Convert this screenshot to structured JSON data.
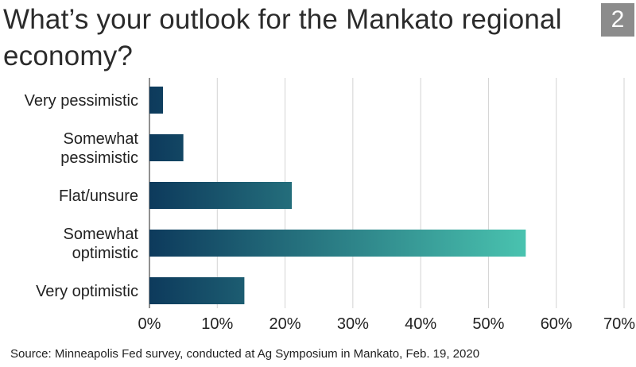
{
  "title": "What’s your outlook for the Mankato regional economy?",
  "badge": "2",
  "source": "Source: Minneapolis Fed survey, conducted at Ag Symposium in Mankato, Feb. 19, 2020",
  "colors": {
    "bar_start": "#0d3a5c",
    "bar_end": "#4ac4b0",
    "grid": "#d3d3d3",
    "axis": "#222222",
    "badge_bg": "#8c8c8c"
  },
  "chart_data": {
    "type": "bar",
    "orientation": "horizontal",
    "categories": [
      [
        "Very pessimistic"
      ],
      [
        "Somewhat",
        "pessimistic"
      ],
      [
        "Flat/unsure"
      ],
      [
        "Somewhat",
        "optimistic"
      ],
      [
        "Very optimistic"
      ]
    ],
    "values": [
      2,
      5,
      21,
      55.5,
      14
    ],
    "xlim": [
      0,
      70
    ],
    "xticks": [
      0,
      10,
      20,
      30,
      40,
      50,
      60,
      70
    ],
    "xtick_labels": [
      "0%",
      "10%",
      "20%",
      "30%",
      "40%",
      "50%",
      "60%",
      "70%"
    ],
    "grid": true
  }
}
